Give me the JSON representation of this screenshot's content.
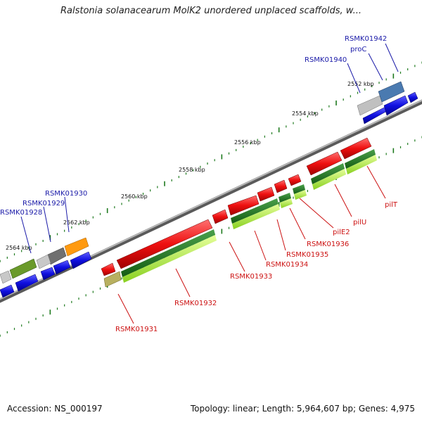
{
  "title": "Ralstonia solanacearum MolK2 unordered unplaced scaffolds, w...",
  "footer": {
    "accession": "Accession: NS_000197",
    "summary": "Topology: linear; Length: 5,964,607 bp; Genes: 4,975"
  },
  "ticks": [
    "2552 kbp",
    "2554 kbp",
    "2556 kbp",
    "2558 kbp",
    "2560 kbp",
    "2562 kbp",
    "2564 kbp"
  ],
  "gene_labels_top": [
    "RSMK01942",
    "proC",
    "RSMK01940",
    "RSMK01930",
    "RSMK01929",
    "RSMK01928"
  ],
  "gene_labels_bottom": [
    "pilT",
    "pilU",
    "pilE2",
    "RSMK01936",
    "RSMK01935",
    "RSMK01934",
    "RSMK01933",
    "RSMK01932",
    "RSMK01931"
  ],
  "colors": {
    "backbone": "#8a8a8a",
    "forward_gene": "#1010e0",
    "reverse_gene": "#e01010",
    "pathway_dark": "#1e7a1e",
    "pathway_light": "#b0f040",
    "tick": "#1e7a1e",
    "label_blue": "#1a1aa8",
    "label_red": "#cc1111"
  }
}
